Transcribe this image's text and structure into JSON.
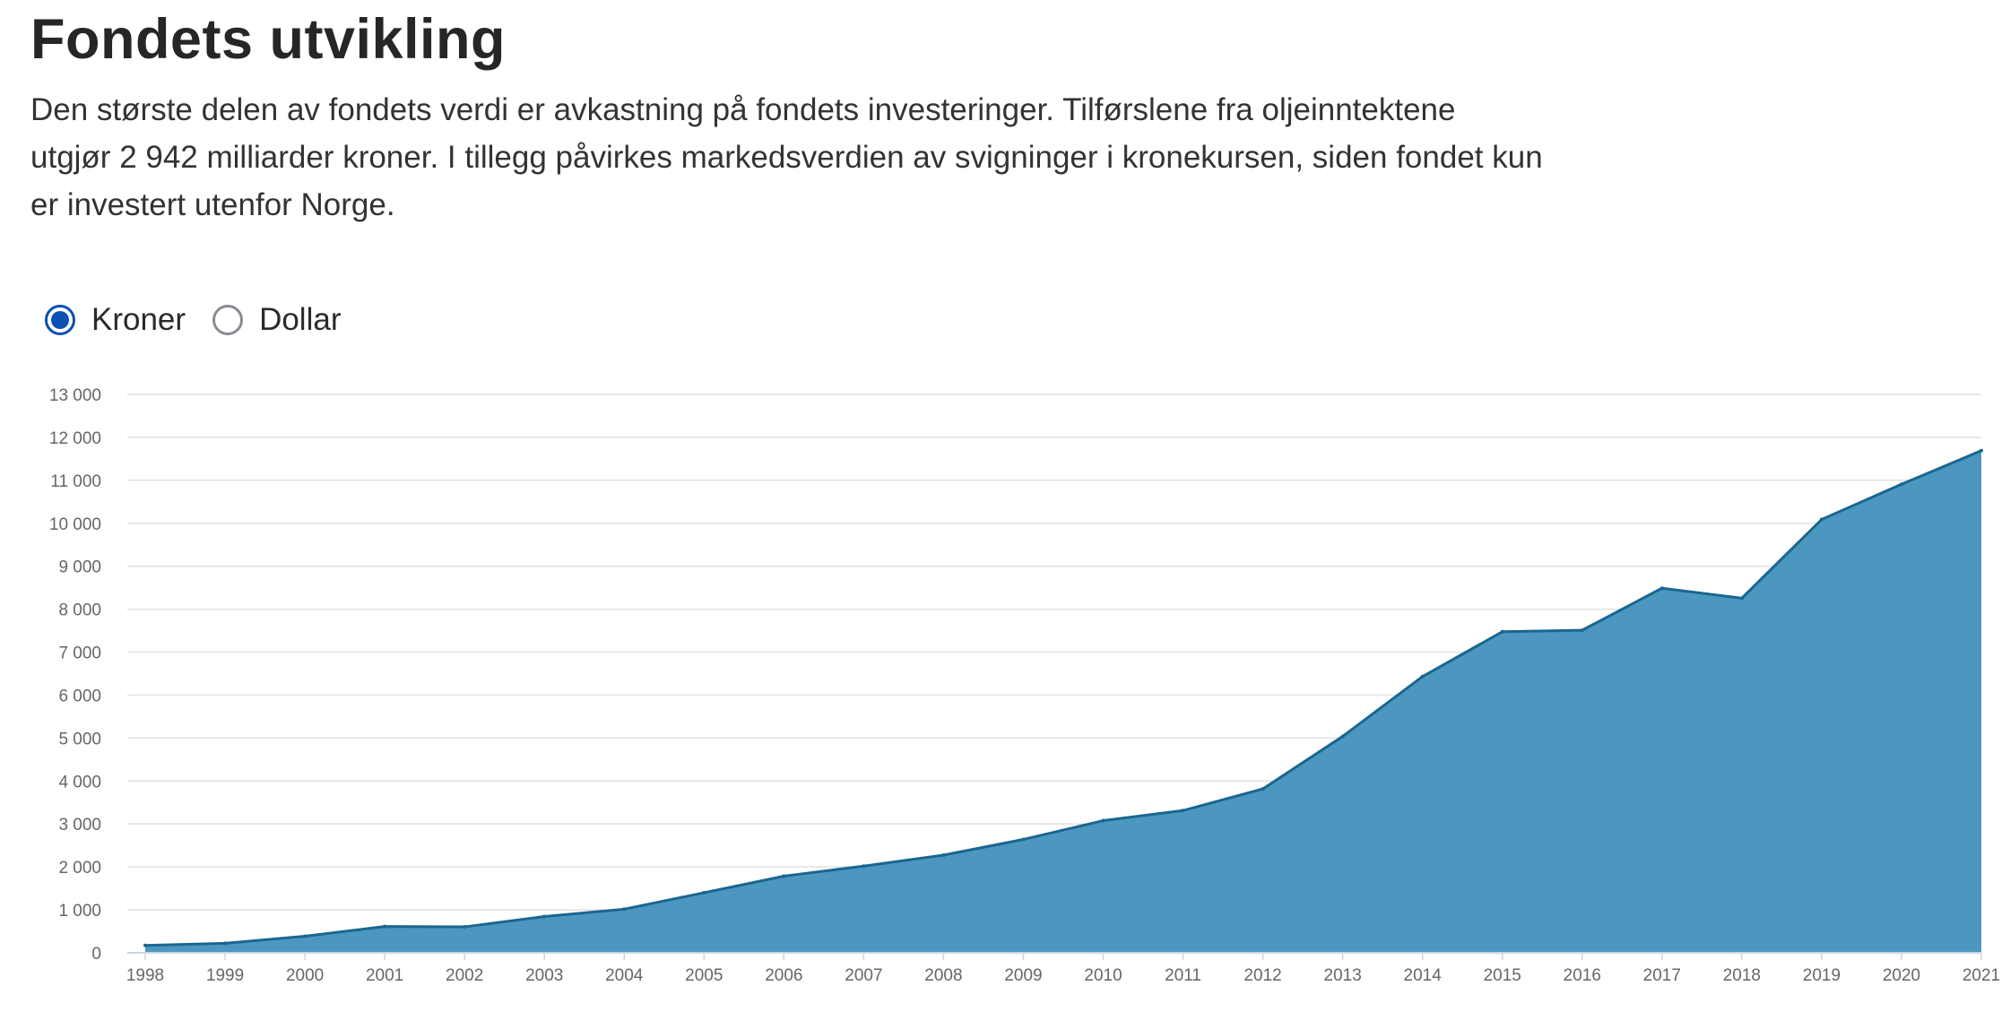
{
  "title": "Fondets utvikling",
  "intro": {
    "line1": "Den største delen av fondets verdi er avkastning på fondets investeringer. Tilførslene fra oljeinntektene",
    "line2": "utgjør 2 942 milliarder kroner. I tillegg påvirkes markedsverdien av svigninger i kronekursen, siden fondet kun",
    "line3": "er investert utenfor Norge."
  },
  "currency_toggle": {
    "options": [
      {
        "label": "Kroner",
        "selected": true
      },
      {
        "label": "Dollar",
        "selected": false
      }
    ]
  },
  "colors": {
    "area_fill": "#4b97bf",
    "area_line": "#1a6690",
    "grid": "#e1e1e1",
    "radio_selected": "#0b4fb6"
  },
  "chart_data": {
    "type": "area",
    "x": [
      "1998",
      "1999",
      "2000",
      "2001",
      "2002",
      "2003",
      "2004",
      "2005",
      "2006",
      "2007",
      "2008",
      "2009",
      "2010",
      "2011",
      "2012",
      "2013",
      "2014",
      "2015",
      "2016",
      "2017",
      "2018",
      "2019",
      "2020",
      "2021"
    ],
    "values": [
      172,
      222,
      386,
      614,
      604,
      845,
      1016,
      1400,
      1784,
      2019,
      2275,
      2640,
      3077,
      3312,
      3816,
      5038,
      6431,
      7475,
      7510,
      8488,
      8256,
      10088,
      10907,
      11690
    ],
    "ylim": [
      0,
      13000
    ],
    "yticks": [
      "0",
      "1 000",
      "2 000",
      "3 000",
      "4 000",
      "5 000",
      "6 000",
      "7 000",
      "8 000",
      "9 000",
      "10 000",
      "11 000",
      "12 000",
      "13 000"
    ],
    "ytick_values": [
      0,
      1000,
      2000,
      3000,
      4000,
      5000,
      6000,
      7000,
      8000,
      9000,
      10000,
      11000,
      12000,
      13000
    ],
    "grid": true,
    "legend": "none"
  }
}
